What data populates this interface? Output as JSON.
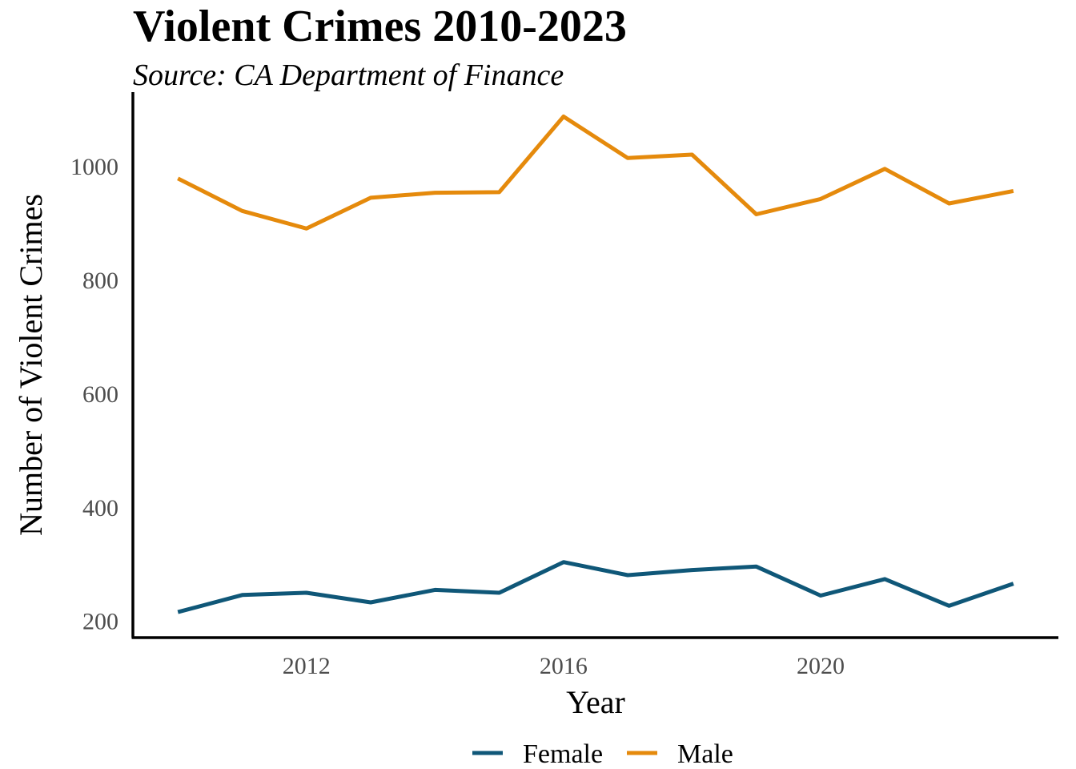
{
  "chart_data": {
    "type": "line",
    "title": "Violent Crimes 2010-2023",
    "subtitle": "Source: CA Department of Finance",
    "xlabel": "Year",
    "ylabel": "Number of Violent Crimes",
    "x": [
      2010,
      2011,
      2012,
      2013,
      2014,
      2015,
      2016,
      2017,
      2018,
      2019,
      2020,
      2021,
      2022,
      2023
    ],
    "xlim": [
      2009.3,
      2023.7
    ],
    "ylim": [
      170,
      1130
    ],
    "xticks": [
      2012,
      2016,
      2020
    ],
    "yticks": [
      200,
      400,
      600,
      800,
      1000
    ],
    "grid": false,
    "legend_position": "bottom",
    "series": [
      {
        "name": "Female",
        "color": "#0f5778",
        "values": [
          215,
          245,
          249,
          232,
          254,
          249,
          303,
          280,
          289,
          295,
          244,
          273,
          226,
          265
        ]
      },
      {
        "name": "Male",
        "color": "#e58a0c",
        "values": [
          978,
          921,
          890,
          944,
          953,
          954,
          1087,
          1014,
          1020,
          915,
          942,
          995,
          934,
          956
        ]
      }
    ]
  }
}
